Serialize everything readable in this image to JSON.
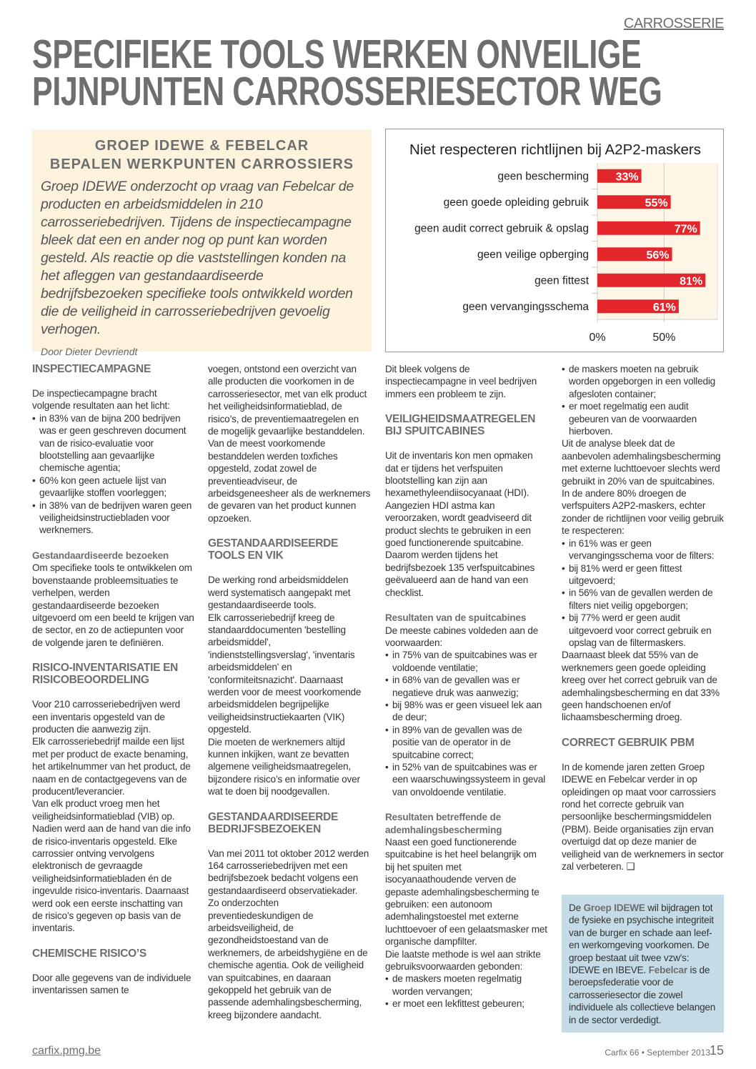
{
  "section_label": "CARROSSERIE",
  "title": [
    "SPECIFIEKE TOOLS WERKEN ONVEILIGE",
    "PIJNPUNTEN CARROSSERIESECTOR WEG"
  ],
  "intro": {
    "heading": [
      "GROEP IDEWE & FEBELCAR",
      "BEPALEN WERKPUNTEN CARROSSIERS"
    ],
    "lead": "Groep IDEWE onderzocht op vraag van Febelcar de producten en arbeidsmiddelen in 210 carrosseriebedrijven. Tijdens de inspectiecampagne bleek dat een en ander nog op punt kan worden gesteld. Als reactie op die vaststellingen konden na het afleggen van gestandaardiseerde bedrijfsbezoeken specifieke tools ontwikkeld worden die de veiligheid in carrosseriebedrijven gevoelig verhogen.",
    "byline": "Door Dieter Devriendt"
  },
  "chart_data": {
    "type": "bar",
    "orientation": "horizontal",
    "title": "Niet respecteren richtlijnen bij A2P2-maskers",
    "categories": [
      "geen bescherming",
      "geen goede opleiding gebruik",
      "geen audit correct gebruik & opslag",
      "geen veilige opberging",
      "geen fittest",
      "geen vervangingsschema"
    ],
    "values": [
      33,
      55,
      77,
      56,
      81,
      61
    ],
    "data_labels": [
      "33%",
      "55%",
      "77%",
      "56%",
      "81%",
      "61%"
    ],
    "xlim": [
      0,
      90
    ],
    "xticks": [
      0,
      50
    ],
    "xtick_labels": [
      "0%",
      "50%"
    ],
    "bar_color": "#e3262b",
    "plot_background": "#fdf6e6",
    "grid": true
  },
  "columns": [
    [
      {
        "t": "h",
        "text": "INSPECTIECAMPAGNE"
      },
      {
        "t": "p",
        "text": "De inspectiecampagne bracht volgende resultaten aan het licht:"
      },
      {
        "t": "ul",
        "items": [
          "in 83% van de bijna 200 bedrijven was er geen geschreven document van de risico-evaluatie voor blootstelling aan gevaarlijke chemische agentia;",
          "60% kon geen actuele lijst van gevaarlijke stoffen voorleggen;",
          "in 38% van de bedrijven waren geen veiligheidsinstructiebladen voor werknemers."
        ]
      },
      {
        "t": "gap"
      },
      {
        "t": "sub",
        "text": "Gestandaardiseerde bezoeken"
      },
      {
        "t": "p",
        "text": "Om specifieke tools te ontwikkelen om bovenstaande probleemsituaties te verhelpen, werden gestandaardiseerde bezoeken uitgevoerd om een beeld te krijgen van de sector, en zo de actiepunten voor de volgende jaren te definiëren."
      },
      {
        "t": "gap"
      },
      {
        "t": "h",
        "text": "RISICO-INVENTARISATIE EN RISICOBEOORDELING"
      },
      {
        "t": "p",
        "text": "Voor 210 carrosseriebedrijven werd een inventaris opgesteld van de producten die aanwezig zijn."
      },
      {
        "t": "p",
        "text": "Elk carrosseriebedrijf mailde een lijst met per product de exacte benaming, het artikelnummer van het product, de naam en de contactgegevens van de producent/leverancier."
      },
      {
        "t": "p",
        "text": "Van elk product vroeg men het veiligheidsinformatieblad (VIB) op. Nadien werd aan de hand van die info de risico-inventaris opgesteld. Elke carrossier ontving vervolgens elektronisch de gevraagde veiligheidsinformatiebladen én de ingevulde risico-inventaris. Daarnaast werd ook een eerste inschatting van de risico’s gegeven op basis van de inventaris."
      },
      {
        "t": "gap"
      },
      {
        "t": "h",
        "text": "CHEMISCHE RISICO’S"
      },
      {
        "t": "p",
        "text": "Door alle gegevens van de individuele inventarissen samen te"
      }
    ],
    [
      {
        "t": "p",
        "text": "voegen, ontstond een overzicht van alle producten die voorkomen in de carrosseriesector, met van elk product het veiligheidsinformatieblad, de risico’s, de preventiemaatregelen en de mogelijk gevaarlijke bestanddelen."
      },
      {
        "t": "p",
        "text": "Van de meest voorkomende bestanddelen werden toxfiches opgesteld, zodat zowel de preventieadviseur, de arbeidsgeneesheer als de werknemers de gevaren van het product kunnen opzoeken."
      },
      {
        "t": "gap"
      },
      {
        "t": "h",
        "text": "GESTANDAARDISEERDE TOOLS EN VIK"
      },
      {
        "t": "p",
        "text": "De werking rond arbeidsmiddelen werd systematisch aangepakt met gestandaardiseerde tools."
      },
      {
        "t": "p",
        "text": "Elk carrosseriebedrijf kreeg de standaarddocumenten 'bestelling arbeidsmiddel', 'indienststellingsverslag', 'inventaris arbeidsmiddelen' en 'conformiteitsnazicht'. Daarnaast werden voor de meest voorkomende arbeidsmiddelen begrijpelijke veiligheidsinstructiekaarten (VIK) opgesteld."
      },
      {
        "t": "p",
        "text": "Die moeten de werknemers altijd kunnen inkijken, want ze bevatten algemene veiligheidsmaatregelen, bijzondere risico’s en informatie over wat te doen bij noodgevallen."
      },
      {
        "t": "gap"
      },
      {
        "t": "h",
        "text": "GESTANDAARDISEERDE BEDRIJFSBEZOEKEN"
      },
      {
        "t": "p",
        "text": "Van mei 2011 tot oktober 2012 werden 164 carrosseriebedrijven met een bedrijfsbezoek bedacht volgens een gestandaardiseerd observatiekader. Zo onderzochten preventiedeskundigen de arbeidsveiligheid, de gezondheidstoestand van de werknemers, de arbeidshygiëne en de chemische agentia. Ook de veiligheid van spuitcabines, en daaraan gekoppeld het gebruik van de passende ademhalingsbescherming, kreeg bijzondere aandacht."
      }
    ],
    [
      {
        "t": "p",
        "text": "Dit bleek volgens de inspectiecampagne in veel bedrijven immers een probleem te zijn."
      },
      {
        "t": "gap"
      },
      {
        "t": "h",
        "text": "VEILIGHEIDSMAATREGELEN BIJ SPUITCABINES"
      },
      {
        "t": "p",
        "text": "Uit de inventaris kon men opmaken dat er tijdens het verfspuiten blootstelling kan zijn aan hexamethyleendiisocyanaat (HDI)."
      },
      {
        "t": "p",
        "text": "Aangezien HDI astma kan veroorzaken, wordt geadviseerd dit product slechts te gebruiken in een goed functionerende spuitcabine. Daarom werden tijdens het bedrijfsbezoek 135 verfspuitcabines geëvalueerd aan de hand van een checklist."
      },
      {
        "t": "gap"
      },
      {
        "t": "sub",
        "text": "Resultaten van de spuitcabines"
      },
      {
        "t": "p",
        "text": "De meeste cabines voldeden aan de voorwaarden:"
      },
      {
        "t": "ul",
        "items": [
          "in 75% van de spuitcabines was er voldoende ventilatie;",
          "in 68% van de gevallen was er negatieve druk was aanwezig;",
          "bij 98% was er geen visueel lek aan de deur;",
          "in 89% van de gevallen was de positie van de operator in de spuitcabine correct;",
          "in 52% van de spuitcabines was er een waarschuwingssysteem in geval van onvoldoende ventilatie."
        ]
      },
      {
        "t": "gap"
      },
      {
        "t": "sub",
        "text": "Resultaten betreffende de ademhalingsbescherming"
      },
      {
        "t": "p",
        "text": "Naast een goed functionerende spuitcabine is het heel belangrijk om bij het spuiten met isocyanaathoudende verven de gepaste ademhalingsbescherming te gebruiken: een autonoom ademhalingstoestel met externe luchttoevoer of een gelaatsmasker met organische dampfilter."
      },
      {
        "t": "p",
        "text": "Die laatste methode is wel aan strikte gebruiksvoorwaarden gebonden:"
      },
      {
        "t": "ul",
        "items": [
          "de maskers moeten regelmatig worden vervangen;",
          "er moet een lekfittest gebeuren;"
        ]
      }
    ],
    [
      {
        "t": "ul",
        "items": [
          "de maskers moeten na gebruik worden opgeborgen in een volledig afgesloten container;",
          "er moet regelmatig een audit gebeuren van de voorwaarden hierboven."
        ]
      },
      {
        "t": "p",
        "text": "Uit de analyse bleek dat de aanbevolen ademhalingsbescherming met externe luchttoevoer slechts werd gebruikt in 20% van de spuitcabines. In de andere 80% droegen de verfspuiters A2P2-maskers, echter zonder de richtlijnen voor veilig gebruik te respecteren:"
      },
      {
        "t": "ul",
        "items": [
          "in 61% was er geen vervangingsschema voor de filters:",
          "bij 81% werd er geen fittest uitgevoerd;",
          "in 56% van de gevallen werden de filters niet veilig opgeborgen;",
          "bij 77% werd er geen audit uitgevoerd voor correct gebruik en opslag van de filtermaskers."
        ]
      },
      {
        "t": "p",
        "text": "Daarnaast bleek dat 55% van de werknemers geen goede opleiding kreeg over het correct gebruik van de ademhalingsbescherming en dat 33% geen handschoenen en/of lichaamsbescherming droeg."
      },
      {
        "t": "gap"
      },
      {
        "t": "h",
        "text": "CORRECT GEBRUIK PBM"
      },
      {
        "t": "p",
        "text": "In de komende jaren zetten Groep IDEWE en Febelcar verder in op opleidingen op maat voor carrossiers rond het correcte gebruik van persoonlijke beschermingsmiddelen (PBM). Beide organisaties zijn ervan overtuigd dat op deze manier de veiligheid van de werknemers in sector zal verbeteren. ❑"
      }
    ]
  ],
  "info_box": {
    "parts": [
      {
        "text": "De ",
        "bold": false
      },
      {
        "text": "Groep IDEWE",
        "bold": true
      },
      {
        "text": " wil bijdragen tot de fysieke en psychische integriteit van de burger en schade aan leef- en werkomgeving voorkomen. De groep bestaat uit twee vzw's: IDEWE en IBEVE. ",
        "bold": false
      },
      {
        "text": "Febelcar",
        "bold": true
      },
      {
        "text": " is de beroepsfederatie voor de carrosseriesector die zowel individuele als collectieve belangen in de sector verdedigt.",
        "bold": false
      }
    ]
  },
  "footer": {
    "site": "carfix.pmg.be",
    "issue": "Carfix 66 • September 2013",
    "page_number": "15"
  }
}
